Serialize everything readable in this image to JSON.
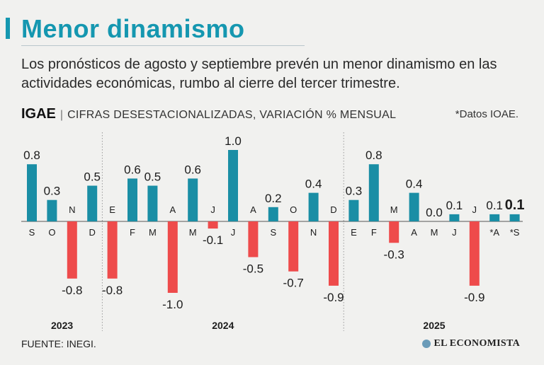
{
  "header": {
    "title": "Menor dinamismo",
    "subtitle": "Los pronósticos de agosto y septiembre prevén un menor dinamismo en las actividades económicas, rumbo al cierre del tercer trimestre.",
    "chart_label": "IGAE",
    "separator": "|",
    "chart_desc": "CIFRAS DESESTACIONALIZADAS, VARIACIÓN % MENSUAL",
    "note": "*Datos IOAE."
  },
  "colors": {
    "accent": "#1597b0",
    "positive": "#1a8ea5",
    "negative": "#ee4b4b",
    "text": "#1c1c1c"
  },
  "chart_data": {
    "type": "bar",
    "title": "IGAE",
    "ylabel": "Variación % mensual",
    "categories": [
      "S",
      "O",
      "N",
      "D",
      "E",
      "F",
      "M",
      "A",
      "M",
      "J",
      "J",
      "A",
      "S",
      "O",
      "N",
      "D",
      "E",
      "F",
      "M",
      "A",
      "M",
      "J",
      "J",
      "*A",
      "*S"
    ],
    "values": [
      0.8,
      0.3,
      -0.8,
      0.5,
      -0.8,
      0.6,
      0.5,
      -1.0,
      0.6,
      -0.1,
      1.0,
      -0.5,
      0.2,
      -0.7,
      0.4,
      -0.9,
      0.3,
      0.8,
      -0.3,
      0.4,
      0.0,
      0.1,
      -0.9,
      0.1,
      0.1
    ],
    "value_labels": [
      "0.8",
      "0.3",
      "-0.8",
      "0.5",
      "-0.8",
      "0.6",
      "0.5",
      "-1.0",
      "0.6",
      "-0.1",
      "1.0",
      "-0.5",
      "0.2",
      "-0.7",
      "0.4",
      "-0.9",
      "0.3",
      "0.8",
      "-0.3",
      "0.4",
      "0.0",
      "0.1",
      "-0.9",
      "0.1",
      "0.1"
    ],
    "highlight_index": 24,
    "year_groups": [
      {
        "year": "2023",
        "start": 0,
        "end": 3
      },
      {
        "year": "2024",
        "start": 4,
        "end": 15
      },
      {
        "year": "2025",
        "start": 16,
        "end": 24
      }
    ],
    "ylim": [
      -1.0,
      1.0
    ]
  },
  "footer": {
    "source": "FUENTE: INEGI.",
    "brand": "EL ECONOMISTA"
  }
}
